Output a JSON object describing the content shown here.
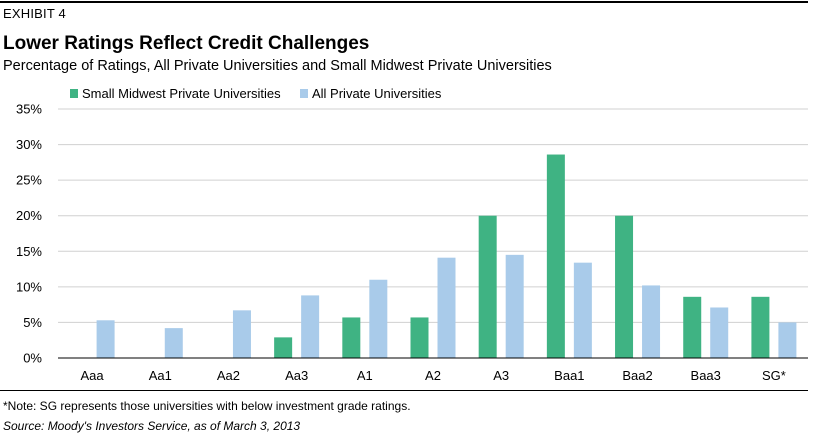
{
  "exhibit_label": "EXHIBIT 4",
  "colors": {
    "small_midwest": "#3fb383",
    "all_private": "#a9cbea",
    "gridline": "#d0d0d0"
  },
  "chart_data": {
    "type": "bar",
    "title": "Lower Ratings Reflect Credit Challenges",
    "subtitle": "Percentage of Ratings, All Private Universities and Small Midwest Private Universities",
    "xlabel": "",
    "ylabel": "",
    "categories": [
      "Aaa",
      "Aa1",
      "Aa2",
      "Aa3",
      "A1",
      "A2",
      "A3",
      "Baa1",
      "Baa2",
      "Baa3",
      "SG*"
    ],
    "series": [
      {
        "name": "Small Midwest Private Universities",
        "values": [
          0,
          0,
          0,
          2.9,
          5.7,
          5.7,
          20.0,
          28.6,
          20.0,
          8.6,
          8.6
        ]
      },
      {
        "name": "All Private Universities",
        "values": [
          5.3,
          4.2,
          6.7,
          8.8,
          11.0,
          14.1,
          14.5,
          13.4,
          10.2,
          7.1,
          5.0
        ]
      }
    ],
    "ylim": [
      0,
      35
    ],
    "yticks": [
      "0%",
      "5%",
      "10%",
      "15%",
      "20%",
      "25%",
      "30%",
      "35%"
    ],
    "grid": true,
    "legend_position": "top-left"
  },
  "note": "*Note: SG represents those universities with below investment grade ratings.",
  "source": "Source: Moody's Investors Service, as of March 3, 2013"
}
